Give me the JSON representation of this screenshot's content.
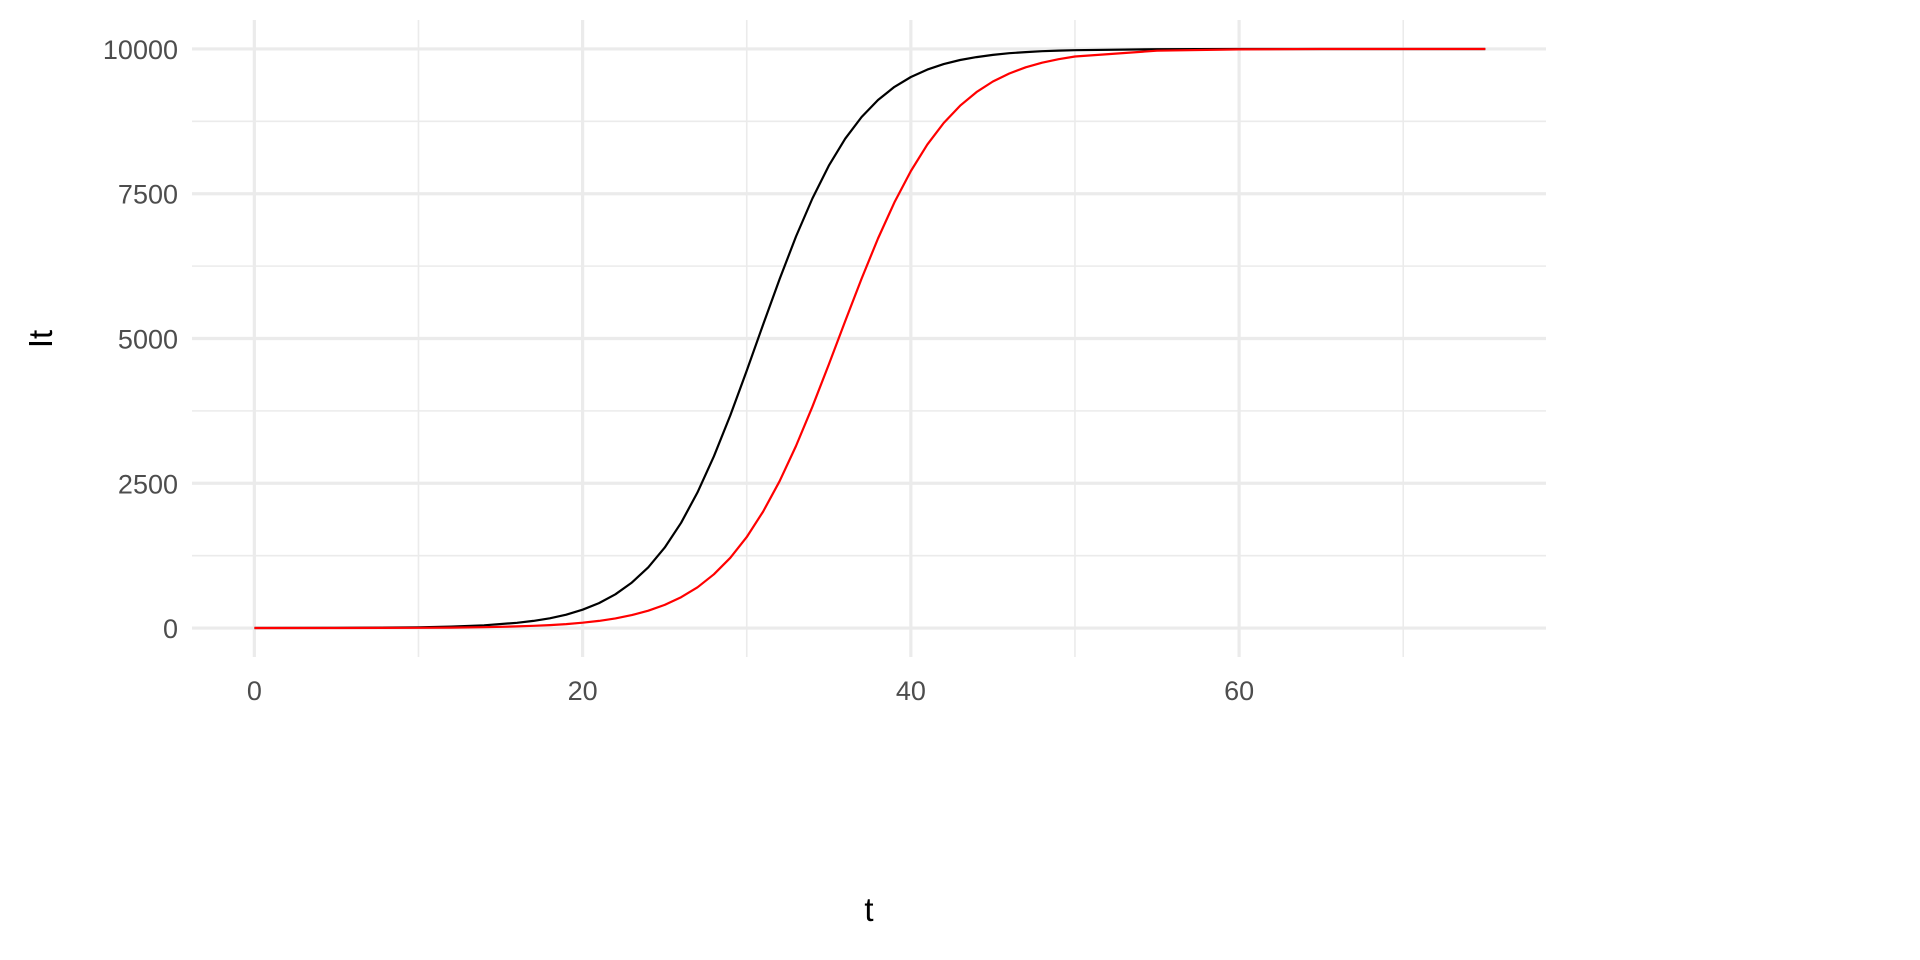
{
  "chart_data": {
    "type": "line",
    "title": "",
    "xlabel": "t",
    "ylabel": "It",
    "xlim": [
      -3.8,
      78.7
    ],
    "ylim": [
      -500,
      10500
    ],
    "xticks": [
      0,
      20,
      40,
      60
    ],
    "xtick_labels": [
      "0",
      "20",
      "40",
      "60"
    ],
    "yticks": [
      0,
      2500,
      5000,
      7500,
      10000
    ],
    "ytick_labels": [
      "0",
      "2500",
      "5000",
      "7500",
      "10000"
    ],
    "x_minor": [
      10,
      30,
      50,
      70
    ],
    "y_minor": [
      1250,
      3750,
      6250,
      8750
    ],
    "grid": true,
    "legend": "none",
    "x": [
      0,
      5,
      10,
      12,
      14,
      16,
      17,
      18,
      19,
      20,
      21,
      22,
      23,
      24,
      25,
      26,
      27,
      28,
      29,
      30,
      31,
      32,
      33,
      34,
      35,
      36,
      37,
      38,
      39,
      40,
      41,
      42,
      43,
      44,
      45,
      46,
      47,
      48,
      49,
      50,
      55,
      60,
      65,
      70,
      75
    ],
    "series": [
      {
        "color": "#000000",
        "values": [
          1,
          3,
          13,
          25,
          48,
          90,
          123,
          169,
          231,
          316,
          430,
          582,
          784,
          1049,
          1389,
          1818,
          2343,
          2965,
          3672,
          4442,
          5240,
          6025,
          6761,
          7418,
          7984,
          8450,
          8825,
          9118,
          9344,
          9515,
          9643,
          9738,
          9809,
          9860,
          9898,
          9926,
          9946,
          9961,
          9971,
          9979,
          9996,
          9999,
          10000,
          10000,
          10000
        ]
      },
      {
        "color": "#ff0000",
        "values": [
          0,
          1,
          5,
          8,
          15,
          28,
          38,
          51,
          68,
          92,
          124,
          166,
          223,
          299,
          399,
          532,
          704,
          928,
          1213,
          1571,
          2010,
          2535,
          3143,
          3822,
          4551,
          5300,
          6035,
          6726,
          7350,
          7892,
          8348,
          8721,
          9020,
          9255,
          9438,
          9577,
          9683,
          9763,
          9823,
          9869,
          9970,
          9993,
          9999,
          10000,
          10000
        ]
      }
    ]
  }
}
